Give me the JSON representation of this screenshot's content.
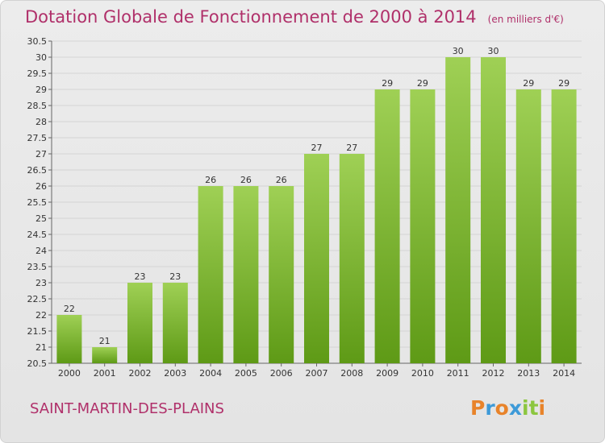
{
  "header": {
    "title": "Dotation Globale de Fonctionnement de 2000 à 2014",
    "unit": "(en milliers d'€)"
  },
  "footer": {
    "commune": "SAINT-MARTIN-DES-PLAINS",
    "logo": "Proxiti"
  },
  "colors": {
    "title": "#b0306a",
    "bar_light": "#9fd055",
    "bar_dark": "#5e9a16",
    "logo_letters": [
      "#e8832a",
      "#3d9ad8",
      "#e8832a",
      "#3d9ad8",
      "#8cc63f",
      "#8cc63f",
      "#e8832a"
    ]
  },
  "chart_data": {
    "type": "bar",
    "title": "Dotation Globale de Fonctionnement de 2000 à 2014",
    "subtitle": "(en milliers d'€)",
    "xlabel": "",
    "ylabel": "",
    "categories": [
      "2000",
      "2001",
      "2002",
      "2003",
      "2004",
      "2005",
      "2006",
      "2007",
      "2008",
      "2009",
      "2010",
      "2011",
      "2012",
      "2013",
      "2014"
    ],
    "values": [
      22,
      21,
      23,
      23,
      26,
      26,
      26,
      27,
      27,
      29,
      29,
      30,
      30,
      29,
      29
    ],
    "ylim": [
      20.5,
      30.5
    ],
    "yticks": [
      "20.5",
      "21",
      "21.5",
      "22",
      "22.5",
      "23",
      "23.5",
      "24",
      "24.5",
      "25",
      "25.5",
      "26",
      "26.5",
      "27",
      "27.5",
      "28",
      "28.5",
      "29",
      "29.5",
      "30",
      "30.5"
    ],
    "grid": true,
    "legend": "none"
  }
}
